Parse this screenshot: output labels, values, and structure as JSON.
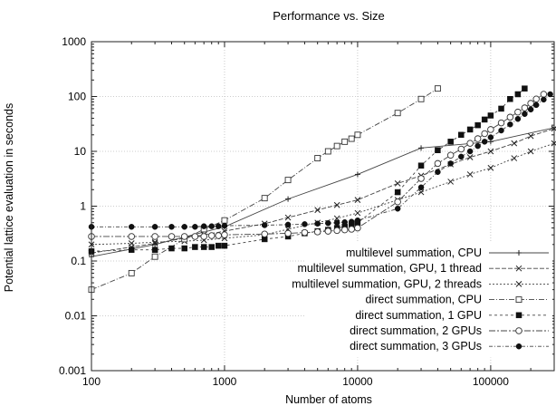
{
  "chart_data": {
    "type": "line",
    "title": "Performance vs. Size",
    "xlabel": "Number of atoms",
    "ylabel": "Potential lattice evaluation in seconds",
    "x_scale": "log",
    "y_scale": "log",
    "xlim": [
      100,
      300000
    ],
    "ylim": [
      0.001,
      1000
    ],
    "x_ticks": [
      100,
      1000,
      10000,
      100000
    ],
    "x_tick_labels": [
      "100",
      "1000",
      "10000",
      "100000"
    ],
    "y_ticks": [
      0.001,
      0.01,
      0.1,
      1,
      10,
      100,
      1000
    ],
    "y_tick_labels": [
      "0.001",
      "0.01",
      "0.1",
      "1",
      "10",
      "100",
      "1000"
    ],
    "grid": true,
    "legend_position": "bottom-right",
    "series": [
      {
        "name": "multilevel summation, CPU",
        "marker": "plus",
        "dash": "solid",
        "x": [
          100,
          300,
          1000,
          3000,
          10000,
          30000,
          100000,
          300000
        ],
        "y": [
          0.12,
          0.2,
          0.42,
          1.35,
          3.8,
          11.5,
          15,
          27
        ]
      },
      {
        "name": "multilevel summation, GPU, 1 thread",
        "marker": "cross",
        "dash": "dash1",
        "x": [
          100,
          200,
          300,
          500,
          700,
          1000,
          2000,
          3000,
          5000,
          7000,
          10000,
          20000,
          30000,
          50000,
          70000,
          100000,
          150000,
          200000,
          300000
        ],
        "y": [
          0.14,
          0.18,
          0.21,
          0.26,
          0.3,
          0.35,
          0.48,
          0.62,
          0.85,
          1.05,
          1.3,
          2.6,
          3.6,
          5.8,
          7.8,
          10,
          14,
          19,
          26
        ]
      },
      {
        "name": "multilevel summation, GPU, 2 threads",
        "marker": "cross",
        "dash": "dash2",
        "x": [
          100,
          200,
          300,
          500,
          700,
          1000,
          2000,
          3000,
          5000,
          7000,
          10000,
          20000,
          30000,
          50000,
          70000,
          100000,
          150000,
          200000,
          300000
        ],
        "y": [
          0.2,
          0.21,
          0.22,
          0.23,
          0.24,
          0.26,
          0.3,
          0.38,
          0.5,
          0.6,
          0.75,
          1.3,
          1.8,
          2.8,
          3.8,
          5,
          7.5,
          10,
          14
        ]
      },
      {
        "name": "direct summation, CPU",
        "marker": "open-square",
        "dash": "dash3",
        "x": [
          100,
          200,
          300,
          500,
          700,
          1000,
          2000,
          3000,
          5000,
          6000,
          7000,
          8000,
          9000,
          10000,
          20000,
          30000,
          40000
        ],
        "y": [
          0.03,
          0.06,
          0.12,
          0.25,
          0.38,
          0.55,
          1.4,
          3.0,
          7.5,
          10,
          12.5,
          15,
          17,
          20,
          50,
          90,
          140
        ]
      },
      {
        "name": "direct summation, 1 GPU",
        "marker": "filled-square",
        "dash": "dash4",
        "x": [
          100,
          200,
          300,
          400,
          500,
          600,
          700,
          800,
          900,
          1000,
          2000,
          3000,
          4000,
          5000,
          6000,
          7000,
          8000,
          9000,
          10000,
          20000,
          30000,
          40000,
          50000,
          60000,
          70000,
          80000,
          90000,
          100000,
          120000,
          140000,
          160000,
          180000
        ],
        "y": [
          0.15,
          0.16,
          0.16,
          0.17,
          0.17,
          0.18,
          0.18,
          0.18,
          0.19,
          0.19,
          0.25,
          0.28,
          0.32,
          0.35,
          0.37,
          0.4,
          0.42,
          0.45,
          0.5,
          1.8,
          5.5,
          10.5,
          15,
          20,
          25,
          30,
          38,
          45,
          60,
          90,
          110,
          140
        ]
      },
      {
        "name": "direct summation, 2 GPUs",
        "marker": "open-circle",
        "dash": "dash5",
        "x": [
          100,
          200,
          300,
          400,
          500,
          600,
          700,
          800,
          900,
          1000,
          2000,
          3000,
          4000,
          5000,
          6000,
          7000,
          8000,
          9000,
          10000,
          20000,
          30000,
          40000,
          50000,
          60000,
          70000,
          80000,
          90000,
          100000,
          120000,
          140000,
          160000,
          180000,
          200000,
          220000,
          250000
        ],
        "y": [
          0.28,
          0.28,
          0.28,
          0.28,
          0.28,
          0.28,
          0.28,
          0.29,
          0.29,
          0.3,
          0.31,
          0.32,
          0.33,
          0.34,
          0.35,
          0.36,
          0.37,
          0.38,
          0.4,
          1.2,
          3.2,
          6,
          8.5,
          11,
          14,
          17,
          21,
          25,
          33,
          42,
          52,
          62,
          75,
          90,
          110
        ]
      },
      {
        "name": "direct summation, 3 GPUs",
        "marker": "filled-circle",
        "dash": "dash6",
        "x": [
          100,
          200,
          300,
          400,
          500,
          600,
          700,
          800,
          900,
          1000,
          2000,
          3000,
          4000,
          5000,
          6000,
          7000,
          8000,
          9000,
          10000,
          20000,
          30000,
          40000,
          50000,
          60000,
          70000,
          80000,
          90000,
          100000,
          120000,
          140000,
          160000,
          180000,
          200000,
          220000,
          250000,
          280000
        ],
        "y": [
          0.42,
          0.42,
          0.42,
          0.42,
          0.42,
          0.42,
          0.43,
          0.43,
          0.43,
          0.44,
          0.45,
          0.46,
          0.47,
          0.48,
          0.49,
          0.5,
          0.51,
          0.52,
          0.55,
          0.9,
          2.2,
          4.2,
          6,
          8,
          10,
          12.5,
          15,
          18,
          24,
          31,
          39,
          48,
          58,
          70,
          88,
          110
        ]
      }
    ]
  }
}
